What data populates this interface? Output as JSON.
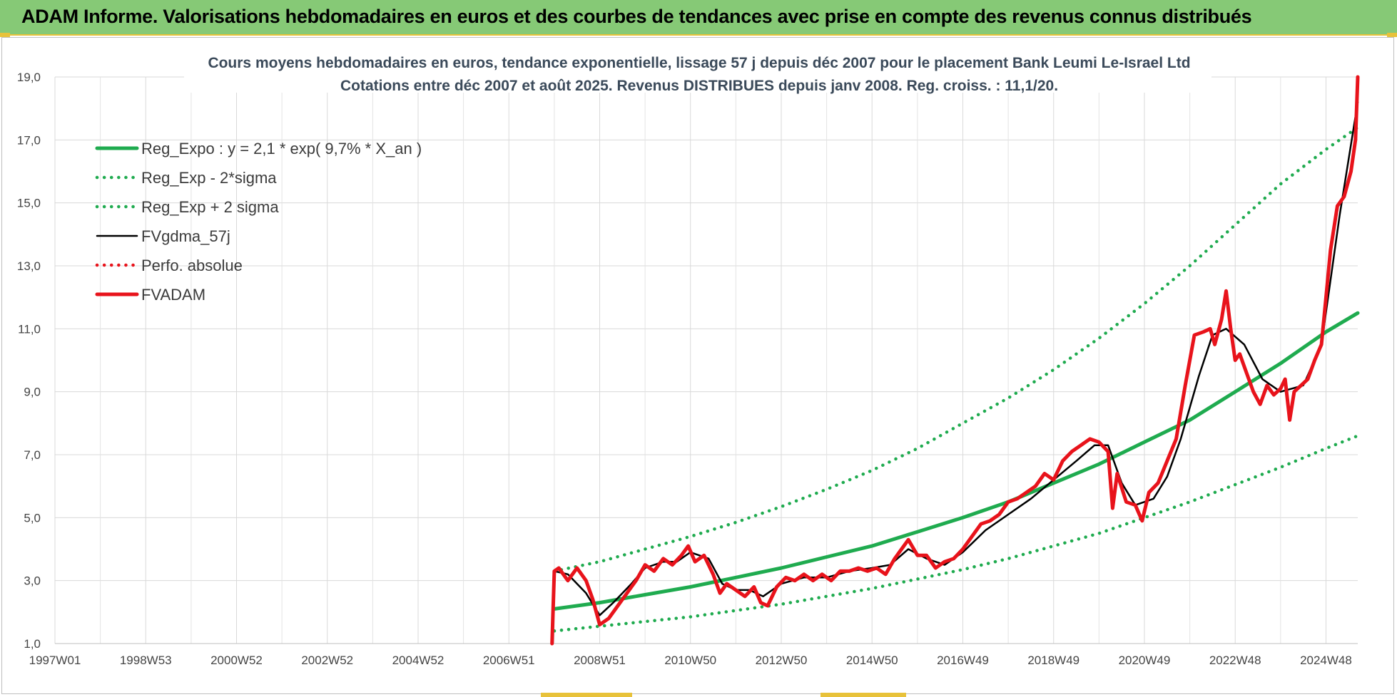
{
  "header": {
    "banner": "ADAM Informe. Valorisations hebdomadaires en euros et des courbes de tendances avec prise en compte des revenus connus distribués"
  },
  "colors": {
    "banner_bg": "#86c976",
    "reg_expo": "#1fab4f",
    "sigma": "#1fab4f",
    "fvgdma": "#000000",
    "perfo": "#e8131b",
    "fvadam": "#e8131b"
  },
  "chart_data": {
    "type": "line",
    "title": "Cours moyens hebdomadaires en euros, tendance exponentielle, lissage 57 j depuis déc 2007 pour le placement Bank Leumi Le-Israel Ltd",
    "subtitle": "Cotations entre déc 2007 et août 2025. Revenus DISTRIBUES depuis janv 2008. Reg. croiss. : 11,1/20.",
    "xlabel": "",
    "ylabel": "",
    "ylim": [
      1,
      19
    ],
    "xlim": [
      1997.0,
      2025.7
    ],
    "yticks": [
      "1,0",
      "3,0",
      "5,0",
      "7,0",
      "9,0",
      "11,0",
      "13,0",
      "15,0",
      "17,0",
      "19,0"
    ],
    "xticks": [
      {
        "label": "1997W01",
        "x": 1997.0
      },
      {
        "label": "1998W53",
        "x": 1999.0
      },
      {
        "label": "2000W52",
        "x": 2001.0
      },
      {
        "label": "2002W52",
        "x": 2003.0
      },
      {
        "label": "2004W52",
        "x": 2005.0
      },
      {
        "label": "2006W51",
        "x": 2007.0
      },
      {
        "label": "2008W51",
        "x": 2009.0
      },
      {
        "label": "2010W50",
        "x": 2011.0
      },
      {
        "label": "2012W50",
        "x": 2013.0
      },
      {
        "label": "2014W50",
        "x": 2015.0
      },
      {
        "label": "2016W49",
        "x": 2017.0
      },
      {
        "label": "2018W49",
        "x": 2019.0
      },
      {
        "label": "2020W49",
        "x": 2021.0
      },
      {
        "label": "2022W48",
        "x": 2023.0
      },
      {
        "label": "2024W48",
        "x": 2025.0
      }
    ],
    "grid": true,
    "legend_position": "top-left",
    "series": [
      {
        "name": "Reg_Expo : y = 2,1 * exp( 9,7% *  X_an )",
        "style": "solid-thick",
        "color": "#1fab4f",
        "x": [
          2008.0,
          2009.0,
          2010.0,
          2011.0,
          2012.0,
          2013.0,
          2014.0,
          2015.0,
          2016.0,
          2017.0,
          2018.0,
          2019.0,
          2020.0,
          2021.0,
          2022.0,
          2023.0,
          2024.0,
          2025.0,
          2025.7
        ],
        "y": [
          2.1,
          2.3,
          2.55,
          2.8,
          3.1,
          3.4,
          3.75,
          4.1,
          4.55,
          5.0,
          5.5,
          6.1,
          6.7,
          7.4,
          8.1,
          9.0,
          9.9,
          10.9,
          11.5
        ]
      },
      {
        "name": "Reg_Exp - 2*sigma",
        "style": "dotted",
        "color": "#1fab4f",
        "x": [
          2008.0,
          2009.0,
          2010.0,
          2011.0,
          2012.0,
          2013.0,
          2014.0,
          2015.0,
          2016.0,
          2017.0,
          2018.0,
          2019.0,
          2020.0,
          2021.0,
          2022.0,
          2023.0,
          2024.0,
          2025.0,
          2025.7
        ],
        "y": [
          1.4,
          1.55,
          1.7,
          1.85,
          2.05,
          2.25,
          2.5,
          2.75,
          3.05,
          3.35,
          3.7,
          4.1,
          4.5,
          5.0,
          5.5,
          6.05,
          6.6,
          7.2,
          7.6
        ]
      },
      {
        "name": "Reg_Exp + 2 sigma",
        "style": "dotted",
        "color": "#1fab4f",
        "x": [
          2008.0,
          2009.0,
          2010.0,
          2011.0,
          2012.0,
          2013.0,
          2014.0,
          2015.0,
          2016.0,
          2017.0,
          2018.0,
          2019.0,
          2020.0,
          2021.0,
          2022.0,
          2023.0,
          2024.0,
          2025.0,
          2025.7
        ],
        "y": [
          3.3,
          3.6,
          4.0,
          4.4,
          4.85,
          5.35,
          5.9,
          6.5,
          7.2,
          8.0,
          8.8,
          9.7,
          10.7,
          11.8,
          13.0,
          14.3,
          15.6,
          16.7,
          17.4
        ]
      },
      {
        "name": "FVgdma_57j",
        "style": "solid-thin",
        "color": "#000000",
        "x": [
          2008.0,
          2008.3,
          2008.7,
          2009.0,
          2009.3,
          2009.7,
          2010.0,
          2010.4,
          2010.7,
          2011.0,
          2011.4,
          2011.7,
          2012.0,
          2012.3,
          2012.6,
          2013.0,
          2013.5,
          2014.0,
          2014.5,
          2015.0,
          2015.4,
          2015.8,
          2016.2,
          2016.6,
          2017.0,
          2017.5,
          2018.0,
          2018.5,
          2019.0,
          2019.5,
          2019.9,
          2020.2,
          2020.5,
          2020.8,
          2021.2,
          2021.5,
          2021.8,
          2022.2,
          2022.5,
          2022.8,
          2023.2,
          2023.6,
          2024.0,
          2024.5,
          2024.9,
          2025.3,
          2025.7
        ],
        "y": [
          3.3,
          3.2,
          2.6,
          1.9,
          2.3,
          2.9,
          3.4,
          3.6,
          3.6,
          3.9,
          3.7,
          2.9,
          2.7,
          2.7,
          2.5,
          2.9,
          3.1,
          3.1,
          3.3,
          3.4,
          3.5,
          4.0,
          3.7,
          3.5,
          3.9,
          4.6,
          5.1,
          5.6,
          6.2,
          6.8,
          7.3,
          7.3,
          6.1,
          5.4,
          5.6,
          6.3,
          7.5,
          9.5,
          10.8,
          11.0,
          10.5,
          9.4,
          9.0,
          9.2,
          10.5,
          14.6,
          18.2
        ]
      },
      {
        "name": "Perfo. absolue",
        "style": "dotted",
        "color": "#e8131b",
        "x": [],
        "y": []
      },
      {
        "name": "FVADAM",
        "style": "solid-thick",
        "color": "#e8131b",
        "x": [
          2007.95,
          2008.0,
          2008.1,
          2008.3,
          2008.5,
          2008.7,
          2008.85,
          2009.0,
          2009.2,
          2009.4,
          2009.6,
          2009.8,
          2010.0,
          2010.2,
          2010.4,
          2010.6,
          2010.8,
          2010.95,
          2011.1,
          2011.3,
          2011.5,
          2011.65,
          2011.8,
          2012.0,
          2012.2,
          2012.4,
          2012.55,
          2012.7,
          2012.9,
          2013.1,
          2013.3,
          2013.5,
          2013.7,
          2013.9,
          2014.1,
          2014.3,
          2014.5,
          2014.7,
          2014.9,
          2015.1,
          2015.3,
          2015.5,
          2015.65,
          2015.8,
          2016.0,
          2016.2,
          2016.4,
          2016.6,
          2016.8,
          2017.0,
          2017.2,
          2017.4,
          2017.6,
          2017.8,
          2018.0,
          2018.2,
          2018.4,
          2018.6,
          2018.8,
          2019.0,
          2019.2,
          2019.4,
          2019.6,
          2019.8,
          2020.0,
          2020.2,
          2020.3,
          2020.4,
          2020.6,
          2020.8,
          2020.95,
          2021.1,
          2021.3,
          2021.5,
          2021.7,
          2021.9,
          2022.1,
          2022.3,
          2022.45,
          2022.55,
          2022.7,
          2022.8,
          2022.9,
          2023.0,
          2023.1,
          2023.25,
          2023.4,
          2023.55,
          2023.7,
          2023.85,
          2024.0,
          2024.1,
          2024.2,
          2024.3,
          2024.45,
          2024.6,
          2024.75,
          2024.9,
          2025.0,
          2025.1,
          2025.25,
          2025.4,
          2025.55,
          2025.65,
          2025.7
        ],
        "y": [
          1.0,
          3.3,
          3.4,
          3.0,
          3.4,
          3.0,
          2.4,
          1.6,
          1.8,
          2.2,
          2.6,
          3.0,
          3.5,
          3.3,
          3.7,
          3.5,
          3.8,
          4.1,
          3.6,
          3.8,
          3.2,
          2.6,
          2.9,
          2.7,
          2.5,
          2.8,
          2.3,
          2.2,
          2.8,
          3.1,
          3.0,
          3.2,
          3.0,
          3.2,
          3.0,
          3.3,
          3.3,
          3.4,
          3.3,
          3.4,
          3.2,
          3.7,
          4.0,
          4.3,
          3.8,
          3.8,
          3.4,
          3.6,
          3.7,
          4.0,
          4.4,
          4.8,
          4.9,
          5.1,
          5.5,
          5.6,
          5.8,
          6.0,
          6.4,
          6.2,
          6.8,
          7.1,
          7.3,
          7.5,
          7.4,
          7.1,
          5.3,
          6.4,
          5.5,
          5.4,
          4.9,
          5.8,
          6.1,
          6.8,
          7.5,
          9.2,
          10.8,
          10.9,
          11.0,
          10.5,
          11.3,
          12.2,
          11.0,
          10.0,
          10.2,
          9.6,
          9.0,
          8.6,
          9.2,
          8.9,
          9.1,
          9.4,
          8.1,
          9.0,
          9.2,
          9.4,
          10.0,
          10.5,
          12.0,
          13.5,
          14.9,
          15.2,
          16.0,
          17.0,
          19.0
        ]
      }
    ]
  },
  "legend": {
    "items": [
      {
        "label": "Reg_Expo : y = 2,1 * exp( 9,7% *  X_an )"
      },
      {
        "label": "Reg_Exp - 2*sigma"
      },
      {
        "label": "Reg_Exp + 2 sigma"
      },
      {
        "label": "FVgdma_57j"
      },
      {
        "label": "Perfo. absolue"
      },
      {
        "label": "FVADAM"
      }
    ]
  }
}
